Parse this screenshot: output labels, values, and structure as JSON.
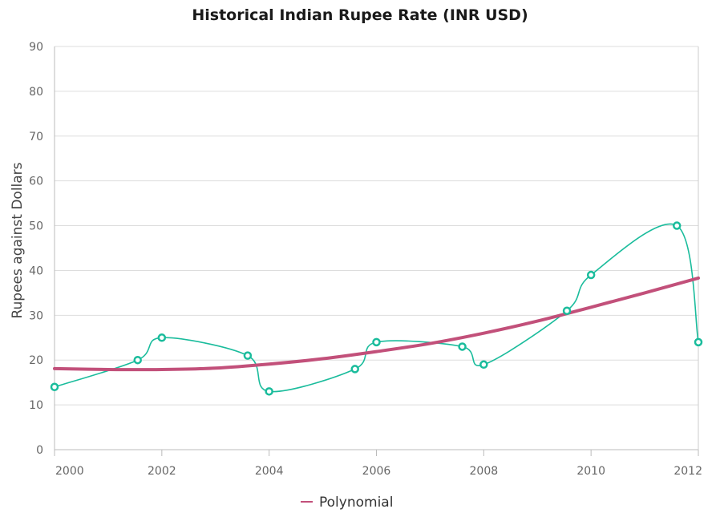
{
  "chart_data": {
    "type": "line",
    "title": "Historical Indian Rupee Rate (INR USD)",
    "xlabel": "",
    "ylabel": "Rupees against Dollars",
    "xlim": [
      2000,
      2012
    ],
    "ylim": [
      0,
      90
    ],
    "x_ticks": [
      "2000",
      "2002",
      "2004",
      "2006",
      "2008",
      "2010",
      "2012"
    ],
    "y_ticks": [
      "0",
      "10",
      "20",
      "30",
      "40",
      "50",
      "60",
      "70",
      "80",
      "90"
    ],
    "grid": true,
    "legend_position": "bottom",
    "series": [
      {
        "style": "spline-with-markers",
        "color": "#1ABC9C",
        "points": [
          {
            "x": 2000,
            "y": 14
          },
          {
            "x": 2001.55,
            "y": 20
          },
          {
            "x": 2002,
            "y": 25
          },
          {
            "x": 2003.6,
            "y": 21
          },
          {
            "x": 2004,
            "y": 13
          },
          {
            "x": 2005.6,
            "y": 18
          },
          {
            "x": 2006,
            "y": 24
          },
          {
            "x": 2007.6,
            "y": 23
          },
          {
            "x": 2008,
            "y": 19
          },
          {
            "x": 2009.55,
            "y": 31
          },
          {
            "x": 2010,
            "y": 39
          },
          {
            "x": 2011.6,
            "y": 50
          },
          {
            "x": 2012,
            "y": 24
          }
        ]
      },
      {
        "name": "Polynomial",
        "style": "trendline",
        "color": "#C2507A",
        "points": [
          {
            "x": 2000,
            "y": 18.1
          },
          {
            "x": 2001,
            "y": 17.9
          },
          {
            "x": 2002,
            "y": 17.9
          },
          {
            "x": 2003,
            "y": 18.2
          },
          {
            "x": 2004,
            "y": 19.1
          },
          {
            "x": 2005,
            "y": 20.3
          },
          {
            "x": 2006,
            "y": 21.9
          },
          {
            "x": 2007,
            "y": 23.7
          },
          {
            "x": 2008,
            "y": 26.0
          },
          {
            "x": 2009,
            "y": 28.7
          },
          {
            "x": 2010,
            "y": 31.8
          },
          {
            "x": 2011,
            "y": 35.0
          },
          {
            "x": 2012,
            "y": 38.3
          }
        ]
      }
    ]
  }
}
